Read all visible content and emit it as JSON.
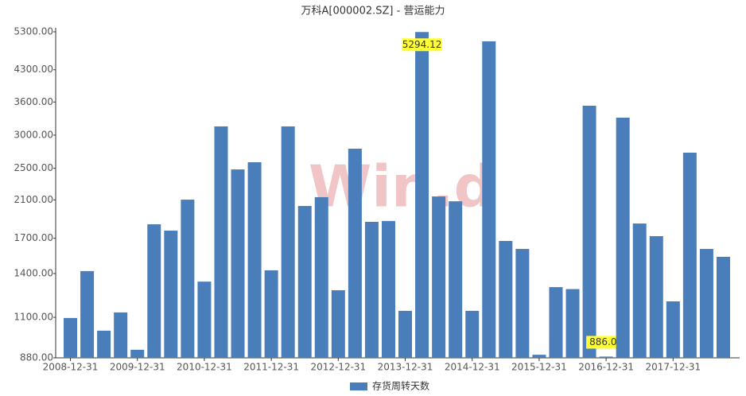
{
  "chart_data": {
    "type": "bar",
    "title": "万科A[000002.SZ] - 营运能力",
    "watermark": "Win.d",
    "categories": [
      "2008-12-31",
      null,
      null,
      null,
      "2009-12-31",
      null,
      null,
      null,
      "2010-12-31",
      null,
      null,
      null,
      "2011-12-31",
      null,
      null,
      null,
      "2012-12-31",
      null,
      null,
      null,
      "2013-12-31",
      null,
      null,
      null,
      "2014-12-31",
      null,
      null,
      null,
      "2015-12-31",
      null,
      null,
      null,
      "2016-12-31",
      null,
      null,
      null,
      "2017-12-31",
      null,
      null,
      null
    ],
    "series": [
      {
        "name": "存货周转天数",
        "color": "#4a7ebb",
        "values": [
          1096,
          1419,
          1022,
          1130,
          920,
          1836,
          1773,
          2103,
          1339,
          3148,
          2484,
          2584,
          1425,
          3148,
          2031,
          2132,
          1277,
          2784,
          1861,
          1870,
          1140,
          5294.12,
          2140,
          2084,
          1140,
          5029,
          1675,
          1603,
          895,
          1299,
          1285,
          3528,
          886.04,
          3303,
          1844,
          1720,
          1201,
          2724,
          1603,
          1535
        ],
        "value_labels": [
          null,
          null,
          null,
          null,
          null,
          null,
          null,
          null,
          null,
          null,
          null,
          null,
          null,
          null,
          null,
          null,
          null,
          null,
          null,
          null,
          null,
          "5294.12",
          null,
          null,
          null,
          null,
          null,
          null,
          null,
          null,
          null,
          null,
          "886.04",
          null,
          null,
          null,
          null,
          null,
          null,
          null
        ]
      }
    ],
    "log_scale": true,
    "ylim": [
      880,
      5300
    ],
    "yticks": [
      {
        "value": 880,
        "label": "880.00"
      },
      {
        "value": 1100,
        "label": "1100.00"
      },
      {
        "value": 1400,
        "label": "1400.00"
      },
      {
        "value": 1700,
        "label": "1700.00"
      },
      {
        "value": 2100,
        "label": "2100.00"
      },
      {
        "value": 2500,
        "label": "2500.00"
      },
      {
        "value": 3000,
        "label": "3000.00"
      },
      {
        "value": 3600,
        "label": "3600.00"
      },
      {
        "value": 4300,
        "label": "4300.00"
      },
      {
        "value": 5300,
        "label": "5300.00"
      }
    ],
    "legend": "bottom"
  }
}
